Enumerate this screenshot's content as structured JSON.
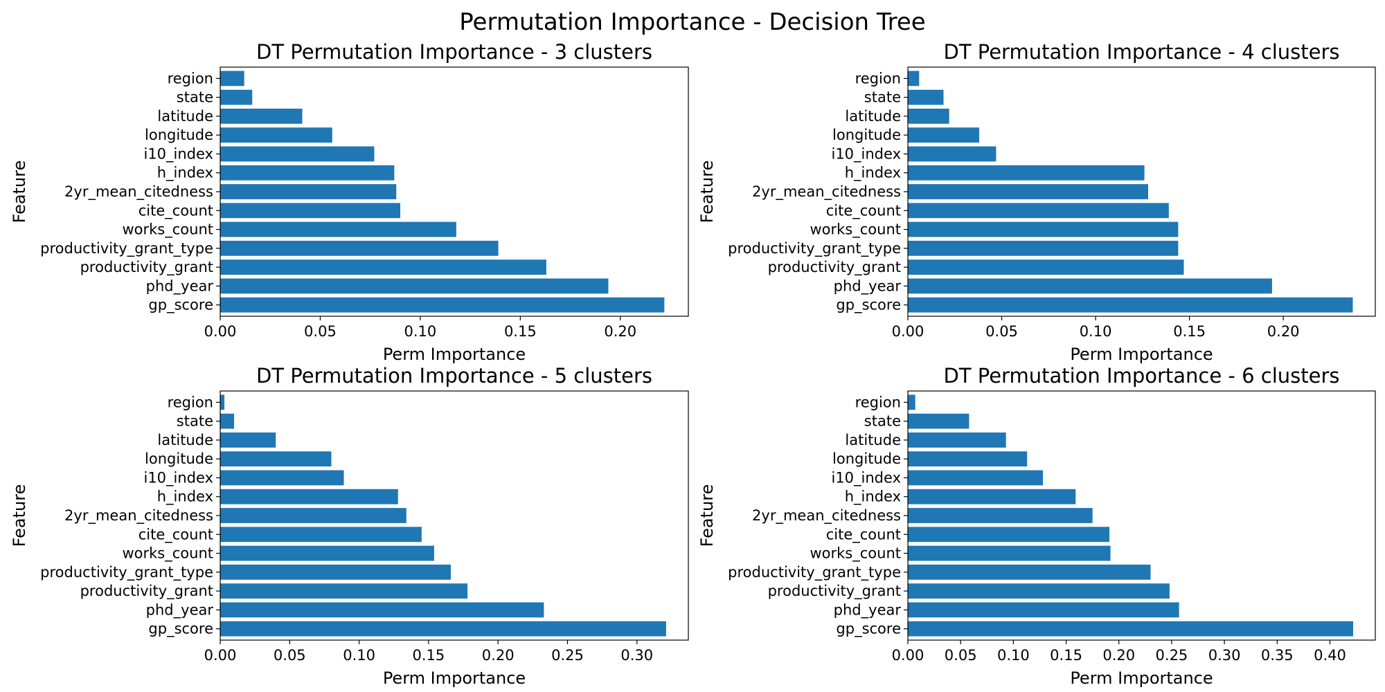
{
  "figure": {
    "title": "Permutation Importance - Decision Tree"
  },
  "colors": {
    "bar": "#1f77b4",
    "axis": "#000000"
  },
  "chart_data": [
    {
      "type": "bar",
      "orientation": "horizontal",
      "title": "DT Permutation Importance - 3 clusters",
      "xlabel": "Perm Importance",
      "ylabel": "Feature",
      "categories": [
        "gp_score",
        "phd_year",
        "productivity_grant",
        "productivity_grant_type",
        "works_count",
        "cite_count",
        "2yr_mean_citedness",
        "h_index",
        "i10_index",
        "longitude",
        "latitude",
        "state",
        "region"
      ],
      "values": [
        0.222,
        0.194,
        0.163,
        0.139,
        0.118,
        0.09,
        0.088,
        0.087,
        0.077,
        0.056,
        0.041,
        0.016,
        0.012
      ],
      "xlim": [
        0,
        0.234
      ],
      "xticks": [
        0.0,
        0.05,
        0.1,
        0.15,
        0.2
      ],
      "xtick_labels": [
        "0.00",
        "0.05",
        "0.10",
        "0.15",
        "0.20"
      ]
    },
    {
      "type": "bar",
      "orientation": "horizontal",
      "title": "DT Permutation Importance - 4 clusters",
      "xlabel": "Perm Importance",
      "ylabel": "Feature",
      "categories": [
        "gp_score",
        "phd_year",
        "productivity_grant",
        "productivity_grant_type",
        "works_count",
        "cite_count",
        "2yr_mean_citedness",
        "h_index",
        "i10_index",
        "longitude",
        "latitude",
        "state",
        "region"
      ],
      "values": [
        0.237,
        0.194,
        0.147,
        0.144,
        0.144,
        0.139,
        0.128,
        0.126,
        0.047,
        0.038,
        0.022,
        0.019,
        0.006
      ],
      "xlim": [
        0,
        0.249
      ],
      "xticks": [
        0.0,
        0.05,
        0.1,
        0.15,
        0.2
      ],
      "xtick_labels": [
        "0.00",
        "0.05",
        "0.10",
        "0.15",
        "0.20"
      ]
    },
    {
      "type": "bar",
      "orientation": "horizontal",
      "title": "DT Permutation Importance - 5 clusters",
      "xlabel": "Perm Importance",
      "ylabel": "Feature",
      "categories": [
        "gp_score",
        "phd_year",
        "productivity_grant",
        "productivity_grant_type",
        "works_count",
        "cite_count",
        "2yr_mean_citedness",
        "h_index",
        "i10_index",
        "longitude",
        "latitude",
        "state",
        "region"
      ],
      "values": [
        0.321,
        0.233,
        0.178,
        0.166,
        0.154,
        0.145,
        0.134,
        0.128,
        0.089,
        0.08,
        0.04,
        0.01,
        0.003
      ],
      "xlim": [
        0,
        0.337
      ],
      "xticks": [
        0.0,
        0.05,
        0.1,
        0.15,
        0.2,
        0.25,
        0.3
      ],
      "xtick_labels": [
        "0.00",
        "0.05",
        "0.10",
        "0.15",
        "0.20",
        "0.25",
        "0.30"
      ]
    },
    {
      "type": "bar",
      "orientation": "horizontal",
      "title": "DT Permutation Importance - 6 clusters",
      "xlabel": "Perm Importance",
      "ylabel": "Feature",
      "categories": [
        "gp_score",
        "phd_year",
        "productivity_grant",
        "productivity_grant_type",
        "works_count",
        "cite_count",
        "2yr_mean_citedness",
        "h_index",
        "i10_index",
        "longitude",
        "latitude",
        "state",
        "region"
      ],
      "values": [
        0.422,
        0.257,
        0.248,
        0.23,
        0.192,
        0.191,
        0.175,
        0.159,
        0.128,
        0.113,
        0.093,
        0.058,
        0.007
      ],
      "xlim": [
        0,
        0.443
      ],
      "xticks": [
        0.0,
        0.05,
        0.1,
        0.15,
        0.2,
        0.25,
        0.3,
        0.35,
        0.4
      ],
      "xtick_labels": [
        "0.00",
        "0.05",
        "0.10",
        "0.15",
        "0.20",
        "0.25",
        "0.30",
        "0.35",
        "0.40"
      ]
    }
  ]
}
